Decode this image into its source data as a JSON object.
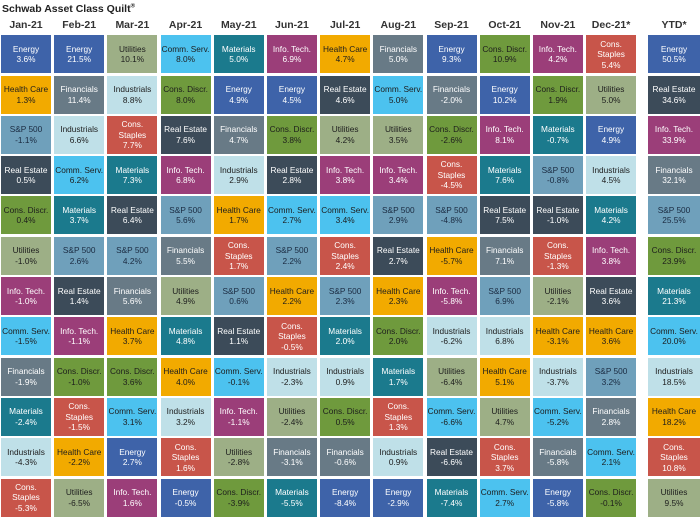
{
  "title": "Schwab Asset Class Quilt",
  "title_mark": "®",
  "colors": {
    "Energy": [
      "#3e63a9",
      "#ffffff"
    ],
    "Health Care": [
      "#f2aa00",
      "#1d1d1d"
    ],
    "S&P 500": [
      "#6fa0bb",
      "#1a2a40"
    ],
    "Real Estate": [
      "#3c4b59",
      "#ffffff"
    ],
    "Cons. Discr.": [
      "#6f9a3d",
      "#1d1d1d"
    ],
    "Utilities": [
      "#9daf86",
      "#1d1d1d"
    ],
    "Info. Tech.": [
      "#9b3e79",
      "#ffffff"
    ],
    "Comm. Serv.": [
      "#4cc2ef",
      "#1d1d1d"
    ],
    "Financials": [
      "#687a86",
      "#ffffff"
    ],
    "Materials": [
      "#1b7a8d",
      "#ffffff"
    ],
    "Industrials": [
      "#bfe0e8",
      "#1d1d1d"
    ],
    "Cons. Staples": [
      "#c8554a",
      "#ffffff"
    ]
  },
  "chart_data": {
    "type": "table",
    "title": "Schwab Asset Class Quilt",
    "columns": [
      {
        "period": "Jan-21",
        "cells": [
          [
            "Energy",
            "3.6%"
          ],
          [
            "Health Care",
            "1.3%"
          ],
          [
            "S&P 500",
            "-1.1%"
          ],
          [
            "Real Estate",
            "0.5%"
          ],
          [
            "Cons. Discr.",
            "0.4%"
          ],
          [
            "Utilities",
            "-1.0%"
          ],
          [
            "Info. Tech.",
            "-1.0%"
          ],
          [
            "Comm. Serv.",
            "-1.5%"
          ],
          [
            "Financials",
            "-1.9%"
          ],
          [
            "Materials",
            "-2.4%"
          ],
          [
            "Industrials",
            "-4.3%"
          ],
          [
            "Cons. Staples",
            "-5.3%"
          ]
        ]
      },
      {
        "period": "Feb-21",
        "cells": [
          [
            "Energy",
            "21.5%"
          ],
          [
            "Financials",
            "11.4%"
          ],
          [
            "Industrials",
            "6.6%"
          ],
          [
            "Comm. Serv.",
            "6.2%"
          ],
          [
            "Materials",
            "3.7%"
          ],
          [
            "S&P 500",
            "2.6%"
          ],
          [
            "Real Estate",
            "1.4%"
          ],
          [
            "Info. Tech.",
            "-1.1%"
          ],
          [
            "Cons. Discr.",
            "-1.0%"
          ],
          [
            "Cons. Staples",
            "-1.5%"
          ],
          [
            "Health Care",
            "-2.2%"
          ],
          [
            "Utilities",
            "-6.5%"
          ]
        ]
      },
      {
        "period": "Mar-21",
        "cells": [
          [
            "Utilities",
            "10.1%"
          ],
          [
            "Industrials",
            "8.8%"
          ],
          [
            "Cons. Staples",
            "7.7%"
          ],
          [
            "Materials",
            "7.3%"
          ],
          [
            "Real Estate",
            "6.4%"
          ],
          [
            "S&P 500",
            "4.2%"
          ],
          [
            "Financials",
            "5.6%"
          ],
          [
            "Health Care",
            "3.7%"
          ],
          [
            "Cons. Discr.",
            "3.6%"
          ],
          [
            "Comm. Serv.",
            "3.1%"
          ],
          [
            "Energy",
            "2.7%"
          ],
          [
            "Info. Tech.",
            "1.6%"
          ]
        ]
      },
      {
        "period": "Apr-21",
        "cells": [
          [
            "Comm. Serv.",
            "8.0%"
          ],
          [
            "Cons. Discr.",
            "8.0%"
          ],
          [
            "Real Estate",
            "7.6%"
          ],
          [
            "Info. Tech.",
            "6.8%"
          ],
          [
            "S&P 500",
            "5.6%"
          ],
          [
            "Financials",
            "5.5%"
          ],
          [
            "Utilities",
            "4.9%"
          ],
          [
            "Materials",
            "4.8%"
          ],
          [
            "Health Care",
            "4.0%"
          ],
          [
            "Industrials",
            "3.2%"
          ],
          [
            "Cons. Staples",
            "1.6%"
          ],
          [
            "Energy",
            "-0.5%"
          ]
        ]
      },
      {
        "period": "May-21",
        "cells": [
          [
            "Materials",
            "5.0%"
          ],
          [
            "Energy",
            "4.9%"
          ],
          [
            "Financials",
            "4.7%"
          ],
          [
            "Industrials",
            "2.9%"
          ],
          [
            "Health Care",
            "1.7%"
          ],
          [
            "Cons. Staples",
            "1.7%"
          ],
          [
            "S&P 500",
            "0.6%"
          ],
          [
            "Real Estate",
            "1.1%"
          ],
          [
            "Comm. Serv.",
            "-0.1%"
          ],
          [
            "Info. Tech.",
            "-1.1%"
          ],
          [
            "Utilities",
            "-2.8%"
          ],
          [
            "Cons. Discr.",
            "-3.9%"
          ]
        ]
      },
      {
        "period": "Jun-21",
        "cells": [
          [
            "Info. Tech.",
            "6.9%"
          ],
          [
            "Energy",
            "4.5%"
          ],
          [
            "Cons. Discr.",
            "3.8%"
          ],
          [
            "Real Estate",
            "2.8%"
          ],
          [
            "Comm. Serv.",
            "2.7%"
          ],
          [
            "S&P 500",
            "2.2%"
          ],
          [
            "Health Care",
            "2.2%"
          ],
          [
            "Cons. Staples",
            "-0.5%"
          ],
          [
            "Industrials",
            "-2.3%"
          ],
          [
            "Utilities",
            "-2.4%"
          ],
          [
            "Financials",
            "-3.1%"
          ],
          [
            "Materials",
            "-5.5%"
          ]
        ]
      },
      {
        "period": "Jul-21",
        "cells": [
          [
            "Health Care",
            "4.7%"
          ],
          [
            "Real Estate",
            "4.6%"
          ],
          [
            "Utilities",
            "4.2%"
          ],
          [
            "Info. Tech.",
            "3.8%"
          ],
          [
            "Comm. Serv.",
            "3.4%"
          ],
          [
            "Cons. Staples",
            "2.4%"
          ],
          [
            "S&P 500",
            "2.3%"
          ],
          [
            "Materials",
            "2.0%"
          ],
          [
            "Industrials",
            "0.9%"
          ],
          [
            "Cons. Discr.",
            "0.5%"
          ],
          [
            "Financials",
            "-0.6%"
          ],
          [
            "Energy",
            "-8.4%"
          ]
        ]
      },
      {
        "period": "Aug-21",
        "cells": [
          [
            "Financials",
            "5.0%"
          ],
          [
            "Comm. Serv.",
            "5.0%"
          ],
          [
            "Utilities",
            "3.5%"
          ],
          [
            "Info. Tech.",
            "3.4%"
          ],
          [
            "S&P 500",
            "2.9%"
          ],
          [
            "Real Estate",
            "2.7%"
          ],
          [
            "Health Care",
            "2.3%"
          ],
          [
            "Cons. Discr.",
            "2.0%"
          ],
          [
            "Materials",
            "1.7%"
          ],
          [
            "Cons. Staples",
            "1.3%"
          ],
          [
            "Industrials",
            "0.9%"
          ],
          [
            "Energy",
            "-2.9%"
          ]
        ]
      },
      {
        "period": "Sep-21",
        "cells": [
          [
            "Energy",
            "9.3%"
          ],
          [
            "Financials",
            "-2.0%"
          ],
          [
            "Cons. Discr.",
            "-2.6%"
          ],
          [
            "Cons. Staples",
            "-4.5%"
          ],
          [
            "S&P 500",
            "-4.8%"
          ],
          [
            "Health Care",
            "-5.7%"
          ],
          [
            "Info. Tech.",
            "-5.8%"
          ],
          [
            "Industrials",
            "-6.2%"
          ],
          [
            "Utilities",
            "-6.4%"
          ],
          [
            "Comm. Serv.",
            "-6.6%"
          ],
          [
            "Real Estate",
            "-6.6%"
          ],
          [
            "Materials",
            "-7.4%"
          ]
        ]
      },
      {
        "period": "Oct-21",
        "cells": [
          [
            "Cons. Discr.",
            "10.9%"
          ],
          [
            "Energy",
            "10.2%"
          ],
          [
            "Info. Tech.",
            "8.1%"
          ],
          [
            "Materials",
            "7.6%"
          ],
          [
            "Real Estate",
            "7.5%"
          ],
          [
            "Financials",
            "7.1%"
          ],
          [
            "S&P 500",
            "6.9%"
          ],
          [
            "Industrials",
            "6.8%"
          ],
          [
            "Health Care",
            "5.1%"
          ],
          [
            "Utilities",
            "4.7%"
          ],
          [
            "Cons. Staples",
            "3.7%"
          ],
          [
            "Comm. Serv.",
            "2.7%"
          ]
        ]
      },
      {
        "period": "Nov-21",
        "cells": [
          [
            "Info. Tech.",
            "4.2%"
          ],
          [
            "Cons. Discr.",
            "1.9%"
          ],
          [
            "Materials",
            "-0.7%"
          ],
          [
            "S&P 500",
            "-0.8%"
          ],
          [
            "Real Estate",
            "-1.0%"
          ],
          [
            "Cons. Staples",
            "-1.3%"
          ],
          [
            "Utilities",
            "-2.1%"
          ],
          [
            "Health Care",
            "-3.1%"
          ],
          [
            "Industrials",
            "-3.7%"
          ],
          [
            "Comm. Serv.",
            "-5.2%"
          ],
          [
            "Financials",
            "-5.8%"
          ],
          [
            "Energy",
            "-5.8%"
          ]
        ]
      },
      {
        "period": "Dec-21*",
        "cells": [
          [
            "Cons. Staples",
            "5.4%"
          ],
          [
            "Utilities",
            "5.0%"
          ],
          [
            "Energy",
            "4.9%"
          ],
          [
            "Industrials",
            "4.5%"
          ],
          [
            "Materials",
            "4.2%"
          ],
          [
            "Info. Tech.",
            "3.8%"
          ],
          [
            "Real Estate",
            "3.6%"
          ],
          [
            "Health Care",
            "3.6%"
          ],
          [
            "S&P 500",
            "3.2%"
          ],
          [
            "Financials",
            "2.8%"
          ],
          [
            "Comm. Serv.",
            "2.1%"
          ],
          [
            "Cons. Discr.",
            "-0.1%"
          ]
        ]
      },
      {
        "period": "YTD*",
        "cells": [
          [
            "Energy",
            "50.5%"
          ],
          [
            "Real Estate",
            "34.6%"
          ],
          [
            "Info. Tech.",
            "33.9%"
          ],
          [
            "Financials",
            "32.1%"
          ],
          [
            "S&P 500",
            "25.5%"
          ],
          [
            "Cons. Discr.",
            "23.9%"
          ],
          [
            "Materials",
            "21.3%"
          ],
          [
            "Comm. Serv.",
            "20.0%"
          ],
          [
            "Industrials",
            "18.5%"
          ],
          [
            "Health Care",
            "18.2%"
          ],
          [
            "Cons. Staples",
            "10.8%"
          ],
          [
            "Utilities",
            "9.5%"
          ]
        ]
      }
    ]
  }
}
